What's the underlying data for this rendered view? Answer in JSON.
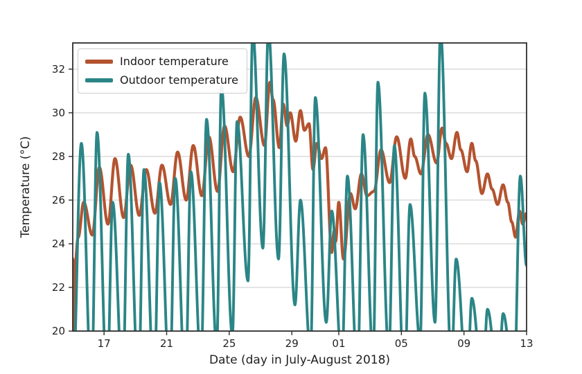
{
  "figure": {
    "background": "#ffffff",
    "spine_color": "#2e2e2e",
    "grid_color": "#c9c9c9",
    "tick_text_color": "#1f1f1f"
  },
  "chart_data": {
    "type": "line",
    "title": "",
    "xlabel": "Date (day in July-August 2018)",
    "ylabel": "Temperature (°C)",
    "x_unit": "days since 2018-07-15",
    "xlim": [
      0,
      29
    ],
    "ylim": [
      20,
      33.2
    ],
    "grid": "horizontal",
    "legend_position": "upper left",
    "x_ticks": {
      "positions": [
        2,
        6,
        10,
        14,
        17,
        21,
        25,
        29
      ],
      "labels": [
        "17",
        "21",
        "25",
        "29",
        "01",
        "05",
        "09",
        "13"
      ]
    },
    "y_ticks": {
      "positions": [
        20,
        22,
        24,
        26,
        28,
        30,
        32
      ],
      "labels": [
        "20",
        "22",
        "24",
        "26",
        "28",
        "30",
        "32"
      ]
    },
    "series": [
      {
        "name": "Indoor temperature",
        "color": "#b4532f",
        "line_width": 4.2,
        "points": [
          [
            0.0,
            23.3
          ],
          [
            0.06,
            19.5
          ],
          [
            0.13,
            23.0
          ],
          [
            0.35,
            24.3
          ],
          [
            0.7,
            25.9
          ],
          [
            1.25,
            24.4
          ],
          [
            1.7,
            27.5
          ],
          [
            2.25,
            24.9
          ],
          [
            2.7,
            27.9
          ],
          [
            3.25,
            25.2
          ],
          [
            3.7,
            27.6
          ],
          [
            4.25,
            25.3
          ],
          [
            4.7,
            27.4
          ],
          [
            5.25,
            25.4
          ],
          [
            5.7,
            27.6
          ],
          [
            6.25,
            25.8
          ],
          [
            6.7,
            28.2
          ],
          [
            7.25,
            26.0
          ],
          [
            7.7,
            28.5
          ],
          [
            8.25,
            26.2
          ],
          [
            8.7,
            28.9
          ],
          [
            9.25,
            26.4
          ],
          [
            9.7,
            29.4
          ],
          [
            10.25,
            27.3
          ],
          [
            10.7,
            29.8
          ],
          [
            11.25,
            28.0
          ],
          [
            11.7,
            30.7
          ],
          [
            12.25,
            28.5
          ],
          [
            12.6,
            31.4
          ],
          [
            12.8,
            30.6
          ],
          [
            13.2,
            28.4
          ],
          [
            13.45,
            30.4
          ],
          [
            13.7,
            29.4
          ],
          [
            13.9,
            30.0
          ],
          [
            14.25,
            28.7
          ],
          [
            14.55,
            30.1
          ],
          [
            14.8,
            29.2
          ],
          [
            15.1,
            29.5
          ],
          [
            15.35,
            27.4
          ],
          [
            15.6,
            28.6
          ],
          [
            15.9,
            27.9
          ],
          [
            16.15,
            28.4
          ],
          [
            16.55,
            23.6
          ],
          [
            16.7,
            24.6
          ],
          [
            16.8,
            24.1
          ],
          [
            17.0,
            25.9
          ],
          [
            17.3,
            23.3
          ],
          [
            17.75,
            26.3
          ],
          [
            18.05,
            25.6
          ],
          [
            18.45,
            27.2
          ],
          [
            18.8,
            26.2
          ],
          [
            19.25,
            26.4
          ],
          [
            19.7,
            28.3
          ],
          [
            20.25,
            26.8
          ],
          [
            20.7,
            28.9
          ],
          [
            21.25,
            27.0
          ],
          [
            21.6,
            28.8
          ],
          [
            21.85,
            28.0
          ],
          [
            22.25,
            27.2
          ],
          [
            22.7,
            29.0
          ],
          [
            23.25,
            27.7
          ],
          [
            23.6,
            29.3
          ],
          [
            23.85,
            28.6
          ],
          [
            24.2,
            27.9
          ],
          [
            24.55,
            29.1
          ],
          [
            24.8,
            28.3
          ],
          [
            25.2,
            27.3
          ],
          [
            25.5,
            28.6
          ],
          [
            25.75,
            27.8
          ],
          [
            26.15,
            26.3
          ],
          [
            26.5,
            27.2
          ],
          [
            26.8,
            26.5
          ],
          [
            27.15,
            25.8
          ],
          [
            27.5,
            26.7
          ],
          [
            27.8,
            25.9
          ],
          [
            28.05,
            25.0
          ],
          [
            28.3,
            24.3
          ],
          [
            28.55,
            25.5
          ],
          [
            28.75,
            24.9
          ],
          [
            29.0,
            25.4
          ]
        ]
      },
      {
        "name": "Outdoor temperature",
        "color": "#2b8586",
        "line_width": 3.9,
        "points": [
          [
            0.0,
            17.5
          ],
          [
            0.55,
            28.6
          ],
          [
            1.2,
            17.5
          ],
          [
            1.55,
            29.1
          ],
          [
            2.2,
            17.5
          ],
          [
            2.55,
            25.9
          ],
          [
            3.2,
            17.5
          ],
          [
            3.55,
            28.1
          ],
          [
            4.2,
            17.5
          ],
          [
            4.55,
            27.4
          ],
          [
            5.2,
            17.5
          ],
          [
            5.55,
            26.8
          ],
          [
            6.2,
            17.5
          ],
          [
            6.55,
            27.0
          ],
          [
            7.2,
            17.5
          ],
          [
            7.55,
            27.3
          ],
          [
            8.2,
            18.5
          ],
          [
            8.55,
            29.7
          ],
          [
            9.2,
            19.3
          ],
          [
            9.5,
            31.2
          ],
          [
            10.2,
            19.8
          ],
          [
            10.5,
            29.6
          ],
          [
            11.2,
            22.3
          ],
          [
            11.5,
            33.7
          ],
          [
            12.15,
            23.8
          ],
          [
            12.5,
            33.8
          ],
          [
            13.15,
            23.3
          ],
          [
            13.5,
            32.7
          ],
          [
            14.2,
            21.2
          ],
          [
            14.55,
            26.0
          ],
          [
            15.2,
            19.0
          ],
          [
            15.5,
            30.7
          ],
          [
            16.2,
            20.4
          ],
          [
            16.55,
            25.5
          ],
          [
            17.2,
            18.5
          ],
          [
            17.55,
            27.1
          ],
          [
            18.2,
            18.0
          ],
          [
            18.55,
            29.0
          ],
          [
            19.2,
            18.8
          ],
          [
            19.5,
            31.4
          ],
          [
            20.2,
            19.0
          ],
          [
            20.55,
            28.5
          ],
          [
            21.2,
            17.5
          ],
          [
            21.55,
            25.8
          ],
          [
            22.2,
            19.5
          ],
          [
            22.5,
            30.9
          ],
          [
            23.15,
            20.4
          ],
          [
            23.5,
            33.7
          ],
          [
            24.2,
            18.5
          ],
          [
            24.5,
            23.3
          ],
          [
            25.2,
            17.5
          ],
          [
            25.5,
            21.5
          ],
          [
            26.2,
            17.5
          ],
          [
            26.5,
            21.0
          ],
          [
            27.2,
            17.5
          ],
          [
            27.5,
            20.8
          ],
          [
            28.2,
            17.5
          ],
          [
            28.6,
            27.1
          ],
          [
            29.0,
            23.0
          ]
        ]
      }
    ]
  }
}
